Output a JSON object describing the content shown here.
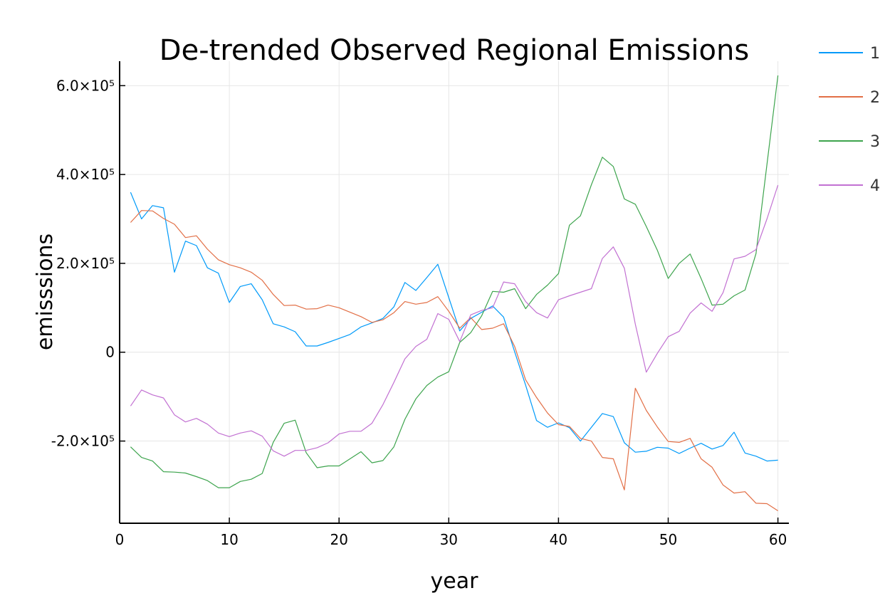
{
  "chart_data": {
    "type": "line",
    "title": "De-trended Observed Regional Emissions",
    "xlabel": "year",
    "ylabel": "emisssions",
    "xlim": [
      0,
      61
    ],
    "ylim": [
      -385000,
      655000
    ],
    "grid": true,
    "legend_position": "outside-top-right",
    "x_ticks": [
      {
        "value": 0,
        "label": "0"
      },
      {
        "value": 10,
        "label": "10"
      },
      {
        "value": 20,
        "label": "20"
      },
      {
        "value": 30,
        "label": "30"
      },
      {
        "value": 40,
        "label": "40"
      },
      {
        "value": 50,
        "label": "50"
      },
      {
        "value": 60,
        "label": "60"
      }
    ],
    "y_ticks": [
      {
        "value": -200000,
        "label": "-2.0×10⁵"
      },
      {
        "value": 0,
        "label": "0"
      },
      {
        "value": 200000,
        "label": "2.0×10⁵"
      },
      {
        "value": 400000,
        "label": "4.0×10⁵"
      },
      {
        "value": 600000,
        "label": "6.0×10⁵"
      }
    ],
    "x": [
      1,
      2,
      3,
      4,
      5,
      6,
      7,
      8,
      9,
      10,
      11,
      12,
      13,
      14,
      15,
      16,
      17,
      18,
      19,
      20,
      21,
      22,
      23,
      24,
      25,
      26,
      27,
      28,
      29,
      30,
      31,
      32,
      33,
      34,
      35,
      36,
      37,
      38,
      39,
      40,
      41,
      42,
      43,
      44,
      45,
      46,
      47,
      48,
      49,
      50,
      51,
      52,
      53,
      54,
      55,
      56,
      57,
      58,
      59,
      60
    ],
    "series": [
      {
        "name": "1",
        "color": "#009af9",
        "values": [
          360000,
          300000,
          330000,
          325000,
          180000,
          250000,
          240000,
          190000,
          178000,
          112000,
          148000,
          154000,
          118000,
          64000,
          57000,
          46000,
          14000,
          14000,
          22000,
          31000,
          40000,
          57000,
          66000,
          76000,
          102000,
          157000,
          139000,
          168000,
          198000,
          123000,
          48000,
          76000,
          90000,
          104000,
          79000,
          1000,
          -74000,
          -154000,
          -169000,
          -159000,
          -170000,
          -200000,
          -169000,
          -138000,
          -145000,
          -204000,
          -225000,
          -223000,
          -214000,
          -216000,
          -228000,
          -216000,
          -205000,
          -218000,
          -210000,
          -180000,
          -227000,
          -234000,
          -245000,
          -243000
        ]
      },
      {
        "name": "2",
        "color": "#e26f46",
        "values": [
          292000,
          319000,
          318000,
          301000,
          288000,
          258000,
          262000,
          232000,
          208000,
          197000,
          190000,
          180000,
          162000,
          130000,
          105000,
          106000,
          97000,
          98000,
          106000,
          100000,
          90000,
          80000,
          67000,
          73000,
          89000,
          114000,
          108000,
          112000,
          125000,
          92000,
          54000,
          78000,
          51000,
          54000,
          64000,
          13000,
          -62000,
          -102000,
          -137000,
          -163000,
          -167000,
          -194000,
          -200000,
          -237000,
          -240000,
          -310000,
          -81000,
          -131000,
          -168000,
          -201000,
          -203000,
          -194000,
          -240000,
          -259000,
          -299000,
          -317000,
          -314000,
          -340000,
          -341000,
          -357000
        ]
      },
      {
        "name": "3",
        "color": "#3da44d",
        "values": [
          -213000,
          -237000,
          -245000,
          -269000,
          -270000,
          -272000,
          -280000,
          -289000,
          -305000,
          -305000,
          -291000,
          -286000,
          -273000,
          -203000,
          -160000,
          -153000,
          -226000,
          -260000,
          -256000,
          -256000,
          -240000,
          -224000,
          -249000,
          -244000,
          -213000,
          -151000,
          -105000,
          -75000,
          -56000,
          -44000,
          22000,
          44000,
          82000,
          137000,
          135000,
          143000,
          98000,
          130000,
          151000,
          177000,
          286000,
          307000,
          377000,
          439000,
          418000,
          345000,
          333000,
          283000,
          230000,
          166000,
          200000,
          221000,
          166000,
          106000,
          108000,
          127000,
          140000,
          222000,
          423000,
          623000
        ]
      },
      {
        "name": "4",
        "color": "#c271d2",
        "values": [
          -121000,
          -85000,
          -96000,
          -103000,
          -141000,
          -157000,
          -149000,
          -162000,
          -182000,
          -190000,
          -182000,
          -177000,
          -189000,
          -222000,
          -234000,
          -221000,
          -221000,
          -215000,
          -204000,
          -184000,
          -178000,
          -178000,
          -160000,
          -118000,
          -68000,
          -15000,
          13000,
          29000,
          87000,
          74000,
          24000,
          84000,
          94000,
          100000,
          158000,
          154000,
          114000,
          89000,
          77000,
          118000,
          127000,
          135000,
          143000,
          211000,
          237000,
          189000,
          63000,
          -45000,
          -3000,
          35000,
          47000,
          88000,
          111000,
          92000,
          134000,
          210000,
          216000,
          231000,
          300000,
          376000
        ]
      }
    ]
  }
}
